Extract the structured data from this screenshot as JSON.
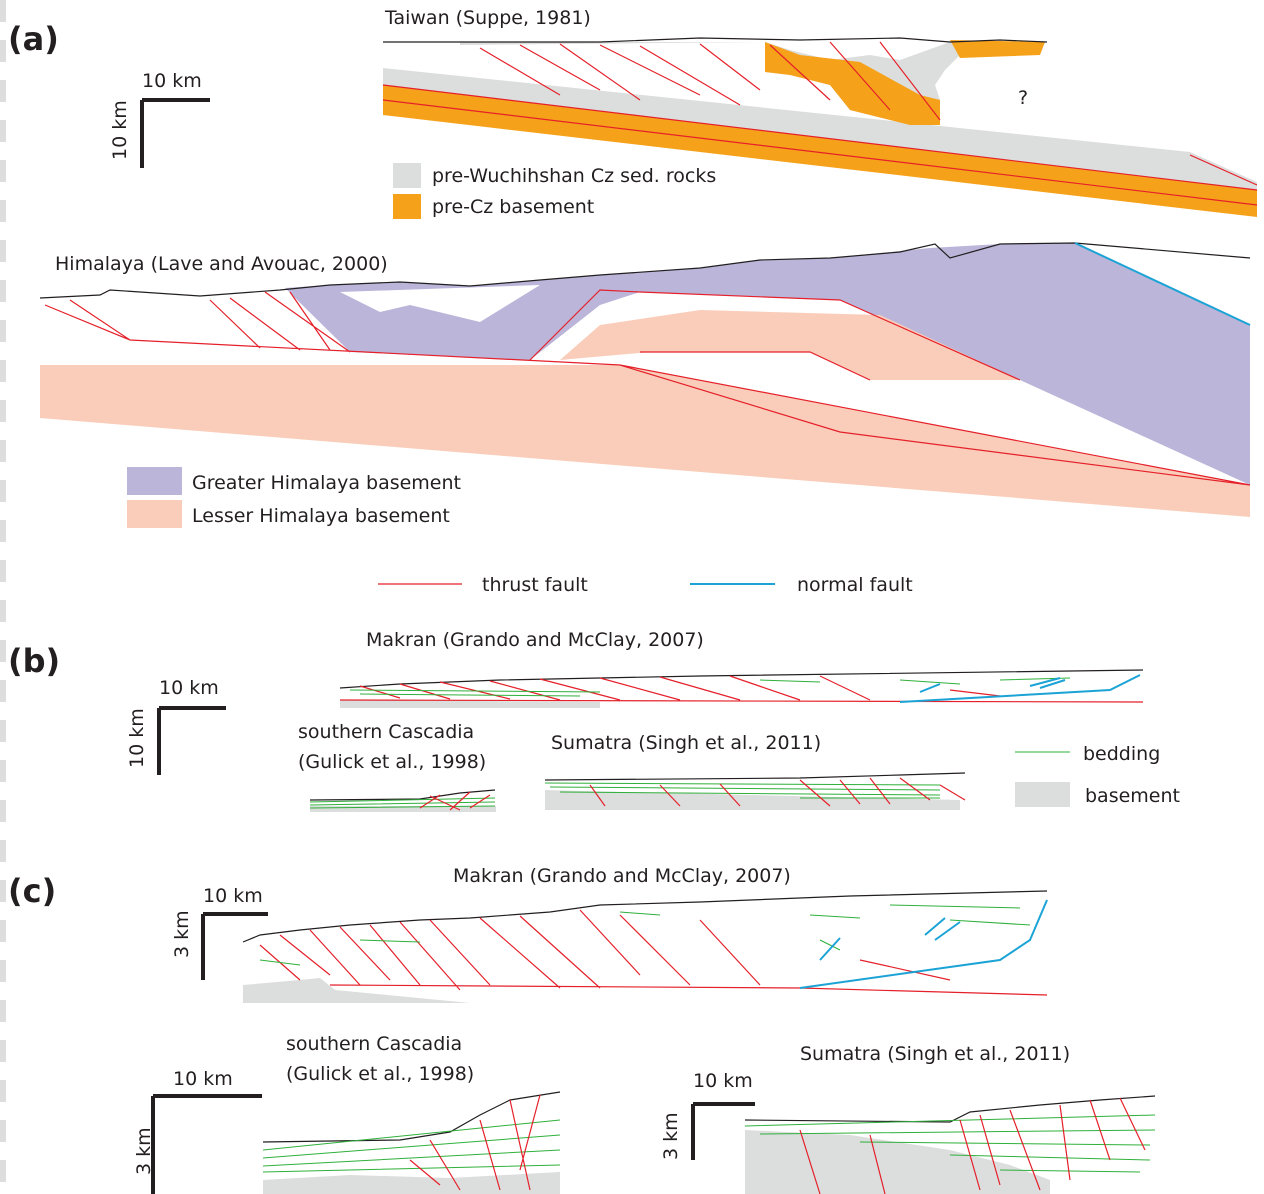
{
  "panel_a": {
    "label": "(a)",
    "scale": {
      "horizontal": "10 km",
      "vertical": "10 km"
    },
    "taiwan": {
      "title": "Taiwan (Suppe, 1981)",
      "unknown": "?",
      "legend": [
        "pre-Wuchihshan Cz sed. rocks",
        "pre-Cz basement"
      ]
    },
    "himalaya": {
      "title": "Himalaya (Lave and Avouac, 2000)",
      "legend": [
        "Greater Himalaya basement",
        "Lesser Himalaya basement"
      ]
    }
  },
  "fault_legend": {
    "thrust": "thrust fault",
    "normal": "normal fault"
  },
  "panel_b": {
    "label": "(b)",
    "scale": {
      "horizontal": "10 km",
      "vertical": "10 km"
    },
    "makran": "Makran (Grando and McClay, 2007)",
    "cascadia": [
      "southern Cascadia",
      "(Gulick et al., 1998)"
    ],
    "sumatra": "Sumatra (Singh et al., 2011)",
    "legend": {
      "bedding": "bedding",
      "basement": "basement"
    }
  },
  "panel_c": {
    "label": "(c)",
    "makran": {
      "title": "Makran (Grando and McClay, 2007)",
      "horizontal": "10 km",
      "vertical": "3 km"
    },
    "cascadia": {
      "title": [
        "southern Cascadia",
        "(Gulick et al., 1998)"
      ],
      "horizontal": "10 km",
      "vertical": "3 km"
    },
    "sumatra": {
      "title": "Sumatra (Singh et al., 2011)",
      "horizontal": "10 km",
      "vertical": "3 km"
    }
  }
}
